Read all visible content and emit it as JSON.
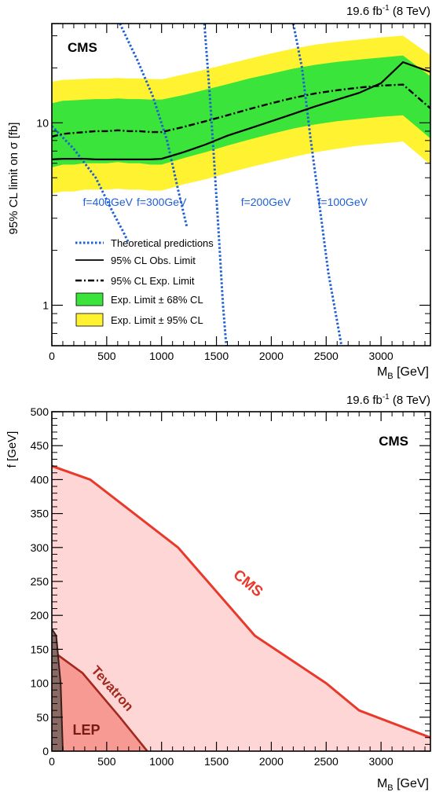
{
  "chart_data": [
    {
      "type": "line",
      "lumi_label": "19.6 fb",
      "lumi_sup": "-1",
      "lumi_energy": " (8 TeV)",
      "experiment_label": "CMS",
      "xlabel_main": "M",
      "xlabel_sub": "B",
      "xlabel_unit": " [GeV]",
      "ylabel": "95% CL limit on σ [fb]",
      "xlim": [
        0,
        3450
      ],
      "ylim": [
        0.6,
        35
      ],
      "yscale": "log",
      "x_ticks": [
        "0",
        "500",
        "1000",
        "1500",
        "2000",
        "2500",
        "3000"
      ],
      "y_ticks": [
        "1",
        "10"
      ],
      "legend": {
        "theory": "Theoretical predictions",
        "observed": "95% CL Obs. Limit",
        "expected": "95% CL Exp. Limit",
        "band68": "Exp. Limit ± 68% CL",
        "band95": "Exp. Limit ± 95% CL"
      },
      "x": [
        0,
        100,
        200,
        300,
        400,
        500,
        600,
        700,
        800,
        900,
        1000,
        1200,
        1400,
        1600,
        1800,
        2000,
        2200,
        2400,
        2600,
        2800,
        3000,
        3200,
        3450
      ],
      "series": [
        {
          "name": "95% CL Obs. Limit",
          "values": [
            6.3,
            6.35,
            6.35,
            6.35,
            6.3,
            6.3,
            6.3,
            6.3,
            6.3,
            6.3,
            6.35,
            6.9,
            7.6,
            8.5,
            9.3,
            10.2,
            11.2,
            12.3,
            13.4,
            14.6,
            16.5,
            21.5,
            19.0
          ]
        },
        {
          "name": "95% CL Exp. Limit",
          "values": [
            8.4,
            8.7,
            8.8,
            8.9,
            9.0,
            9.0,
            9.1,
            9.0,
            9.0,
            8.9,
            8.9,
            9.5,
            10.2,
            11.0,
            11.9,
            12.8,
            13.7,
            14.5,
            15.1,
            15.6,
            16.0,
            16.2,
            12.0
          ]
        },
        {
          "name": "band68_high",
          "values": [
            12.8,
            13.2,
            13.3,
            13.4,
            13.5,
            13.5,
            13.6,
            13.5,
            13.5,
            13.4,
            13.4,
            14.2,
            15.2,
            16.3,
            17.5,
            18.6,
            19.8,
            20.8,
            21.6,
            22.2,
            22.8,
            23.4,
            18.0
          ]
        },
        {
          "name": "band68_low",
          "values": [
            5.7,
            5.9,
            5.9,
            6.0,
            6.0,
            6.0,
            6.1,
            6.0,
            6.0,
            5.9,
            5.9,
            6.4,
            6.9,
            7.5,
            8.1,
            8.7,
            9.3,
            9.8,
            10.2,
            10.5,
            10.8,
            11.0,
            8.2
          ]
        },
        {
          "name": "band95_high",
          "values": [
            16.8,
            17.2,
            17.3,
            17.4,
            17.5,
            17.5,
            17.6,
            17.5,
            17.5,
            17.4,
            17.3,
            18.4,
            19.6,
            21.0,
            22.5,
            24.0,
            25.5,
            26.8,
            27.8,
            28.6,
            29.4,
            30.0,
            23.5
          ]
        },
        {
          "name": "band95_low",
          "values": [
            4.1,
            4.2,
            4.2,
            4.3,
            4.3,
            4.3,
            4.35,
            4.3,
            4.3,
            4.25,
            4.25,
            4.6,
            4.9,
            5.3,
            5.7,
            6.1,
            6.5,
            6.9,
            7.2,
            7.5,
            7.7,
            7.9,
            5.9
          ]
        }
      ],
      "theory_curves": [
        {
          "label": "f=400GeV",
          "x": [
            0,
            200,
            400,
            560,
            640,
            700
          ],
          "y": [
            9.6,
            7.2,
            5.0,
            3.2,
            2.6,
            2.2
          ]
        },
        {
          "label": "f=300GeV",
          "x": [
            620,
            780,
            920,
            1050,
            1150,
            1230
          ],
          "y": [
            35,
            22,
            14,
            8.0,
            4.3,
            2.7
          ]
        },
        {
          "label": "f=200GeV",
          "x": [
            1390,
            1440,
            1480,
            1520,
            1560,
            1590
          ],
          "y": [
            35,
            14,
            6.0,
            2.5,
            1.0,
            0.6
          ]
        },
        {
          "label": "f=100GeV",
          "x": [
            2200,
            2280,
            2360,
            2440,
            2520,
            2640
          ],
          "y": [
            35,
            20,
            8.0,
            3.5,
            1.5,
            0.6
          ]
        }
      ]
    },
    {
      "type": "area",
      "lumi_label": "19.6 fb",
      "lumi_sup": "-1",
      "lumi_energy": " (8 TeV)",
      "experiment_label": "CMS",
      "xlabel_main": "M",
      "xlabel_sub": "B",
      "xlabel_unit": " [GeV]",
      "ylabel": "f [GeV]",
      "xlim": [
        0,
        3450
      ],
      "ylim": [
        0,
        500
      ],
      "x_ticks": [
        "0",
        "500",
        "1000",
        "1500",
        "2000",
        "2500",
        "3000"
      ],
      "y_ticks": [
        "0",
        "50",
        "100",
        "150",
        "200",
        "250",
        "300",
        "350",
        "400",
        "450",
        "500"
      ],
      "regions": [
        {
          "name": "CMS",
          "x": [
            0,
            350,
            1150,
            1850,
            2500,
            2800,
            3450
          ],
          "y": [
            420,
            400,
            300,
            170,
            100,
            60,
            20
          ]
        },
        {
          "name": "Tevatron",
          "x": [
            0,
            280,
            620,
            870
          ],
          "y": [
            148,
            115,
            50,
            0
          ]
        },
        {
          "name": "LEP",
          "x": [
            0,
            40,
            80,
            100
          ],
          "y": [
            180,
            170,
            100,
            0
          ]
        }
      ],
      "colors": {
        "cms_line": "#e8392b",
        "cms_fill": "#ffd6d6",
        "tev_line": "#a3281e",
        "tev_fill": "#f79a93",
        "lep_line": "#3a1e1a",
        "lep_fill": "#8a6a64"
      }
    }
  ]
}
